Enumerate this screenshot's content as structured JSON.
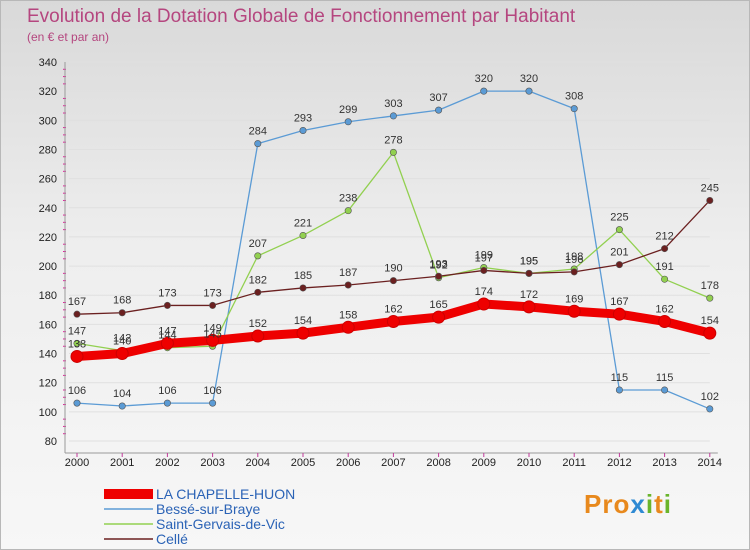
{
  "title": "Evolution de la Dotation Globale de Fonctionnement par Habitant",
  "subtitle": "(en € et par an)",
  "brand": {
    "letters": [
      "P",
      "r",
      "o",
      "x",
      "i",
      "t",
      "i"
    ],
    "colors": [
      "#e8891d",
      "#e8891d",
      "#e8891d",
      "#2f8ad3",
      "#6ab52c",
      "#e8891d",
      "#6ab52c"
    ]
  },
  "chart_data": {
    "type": "line",
    "x": [
      "2000",
      "2001",
      "2002",
      "2003",
      "2004",
      "2005",
      "2006",
      "2007",
      "2008",
      "2009",
      "2010",
      "2011",
      "2012",
      "2013",
      "2014"
    ],
    "ylim": [
      80,
      340
    ],
    "yticks": [
      80,
      100,
      120,
      140,
      160,
      180,
      200,
      220,
      240,
      260,
      280,
      300,
      320,
      340
    ],
    "grid": true,
    "legend_position": "bottom-left",
    "series": [
      {
        "name": "LA CHAPELLE-HUON",
        "color": "#ee0000",
        "width": 9,
        "values": [
          138,
          140,
          147,
          149,
          152,
          154,
          158,
          162,
          165,
          174,
          172,
          169,
          167,
          162,
          154
        ],
        "labels": [
          "138",
          "140",
          "147",
          "149",
          "152",
          "154",
          "158",
          "162",
          "165",
          "174",
          "172",
          "169",
          "167",
          "162",
          "154"
        ]
      },
      {
        "name": "Bessé-sur-Braye",
        "color": "#5b9bd5",
        "width": 1.3,
        "values": [
          106,
          104,
          106,
          106,
          284,
          293,
          299,
          303,
          307,
          320,
          320,
          308,
          115,
          115,
          102
        ],
        "labels": [
          "106",
          "104",
          "106",
          "106",
          "284",
          "293",
          "299",
          "303",
          "307",
          "320",
          "320",
          "308",
          "115",
          "115",
          "102"
        ]
      },
      {
        "name": "Saint-Gervais-de-Vic",
        "color": "#92d050",
        "width": 1.3,
        "values": [
          147,
          142,
          144,
          145,
          207,
          221,
          238,
          278,
          192,
          199,
          195,
          198,
          225,
          191,
          178
        ],
        "labels": [
          "147",
          "142",
          "144",
          "145",
          "207",
          "221",
          "238",
          "278",
          "192",
          "199",
          "195",
          "198",
          "225",
          "191",
          "178"
        ]
      },
      {
        "name": "Cellé",
        "color": "#6b2020",
        "width": 1.3,
        "values": [
          167,
          168,
          173,
          173,
          182,
          185,
          187,
          190,
          193,
          197,
          195,
          196,
          201,
          212,
          245
        ],
        "labels": [
          "167",
          "168",
          "173",
          "173",
          "182",
          "185",
          "187",
          "190",
          "193",
          "197",
          "195",
          "196",
          "201",
          "212",
          "245"
        ]
      }
    ]
  }
}
